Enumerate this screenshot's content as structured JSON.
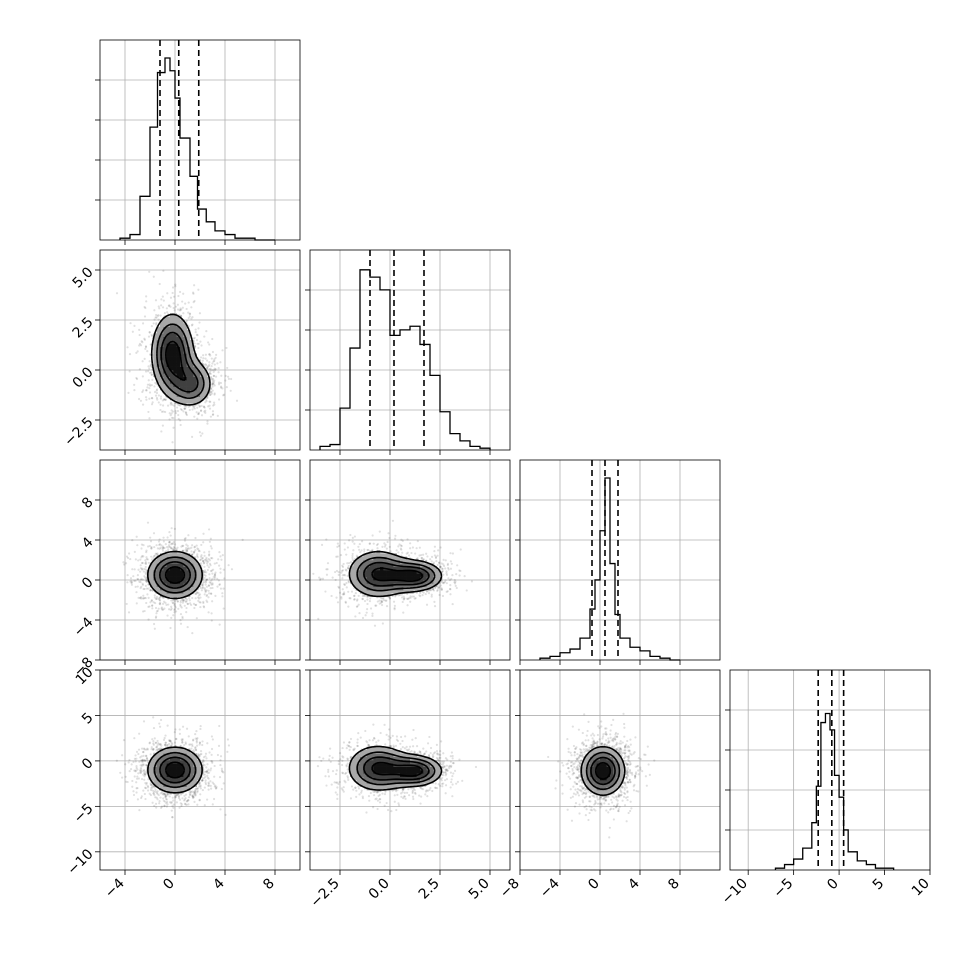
{
  "chart_data": {
    "type": "corner",
    "title": "",
    "grid": true,
    "parameters": [
      {
        "range": [
          -6,
          10
        ],
        "ticks": [
          -4,
          0,
          4,
          8
        ],
        "tick_labels": [
          "−4",
          "0",
          "4",
          "8"
        ],
        "quantiles": [
          -1.2,
          0.3,
          1.9
        ],
        "hist": {
          "edges": [
            -4.4,
            -3.6,
            -2.8,
            -2.0,
            -1.4,
            -0.8,
            -0.4,
            0.0,
            0.4,
            0.8,
            1.2,
            1.8,
            2.5,
            3.2,
            4.0,
            4.8,
            5.6,
            6.4,
            7.2,
            8.0
          ],
          "heights": [
            0.01,
            0.03,
            0.24,
            0.62,
            0.92,
            1.0,
            0.93,
            0.78,
            0.56,
            0.56,
            0.35,
            0.17,
            0.1,
            0.05,
            0.03,
            0.01,
            0.01,
            0.0,
            0.0
          ]
        }
      },
      {
        "range": [
          -4,
          6
        ],
        "ticks": [
          -2.5,
          0.0,
          2.5,
          5.0
        ],
        "tick_labels": [
          "−2.5",
          "0.0",
          "2.5",
          "5.0"
        ],
        "quantiles": [
          -1.0,
          0.2,
          1.7
        ],
        "hist": {
          "edges": [
            -3.5,
            -3.0,
            -2.5,
            -2.0,
            -1.5,
            -1.0,
            -0.5,
            0.0,
            0.5,
            1.0,
            1.5,
            2.0,
            2.5,
            3.0,
            3.5,
            4.0,
            4.5,
            5.0
          ],
          "heights": [
            0.02,
            0.03,
            0.23,
            0.56,
            0.99,
            0.95,
            0.88,
            0.63,
            0.66,
            0.68,
            0.58,
            0.41,
            0.21,
            0.09,
            0.05,
            0.02,
            0.01
          ]
        }
      },
      {
        "range": [
          -8,
          12
        ],
        "ticks": [
          -8,
          -4,
          0,
          4,
          8
        ],
        "tick_labels": [
          "−8",
          "−4",
          "0",
          "4",
          "8"
        ],
        "quantiles": [
          -0.8,
          0.5,
          1.8
        ],
        "hist": {
          "edges": [
            -6,
            -5,
            -4,
            -3,
            -2,
            -1,
            -0.5,
            0,
            0.5,
            1,
            1.5,
            2,
            3,
            4,
            5,
            6,
            7,
            8
          ],
          "heights": [
            0.01,
            0.02,
            0.04,
            0.06,
            0.12,
            0.28,
            0.44,
            0.71,
            1.0,
            0.53,
            0.25,
            0.12,
            0.07,
            0.05,
            0.02,
            0.01,
            0.0
          ]
        }
      },
      {
        "range": [
          -12,
          10
        ],
        "ticks": [
          -10,
          -5,
          0,
          5,
          10
        ],
        "tick_labels": [
          "−10",
          "−5",
          "0",
          "5",
          "10"
        ],
        "quantiles": [
          -2.3,
          -0.8,
          0.5
        ],
        "hist": {
          "edges": [
            -7,
            -6,
            -5,
            -4,
            -3,
            -2.5,
            -2,
            -1.5,
            -1,
            -0.5,
            0,
            0.5,
            1,
            2,
            3,
            4,
            5,
            6
          ],
          "heights": [
            0.01,
            0.03,
            0.06,
            0.12,
            0.26,
            0.46,
            0.81,
            0.86,
            0.77,
            0.52,
            0.4,
            0.22,
            0.1,
            0.05,
            0.03,
            0.01,
            0.01
          ]
        }
      }
    ],
    "pairs": [
      {
        "x_param": 0,
        "y_param": 1,
        "blobs": [
          {
            "cx": -0.2,
            "cy": 0.8,
            "sx": 1.0,
            "sy": 1.2,
            "w": 0.6
          },
          {
            "cx": 1.4,
            "cy": -0.7,
            "sx": 1.0,
            "sy": 0.7,
            "w": 0.4
          }
        ]
      },
      {
        "x_param": 0,
        "y_param": 2,
        "blobs": [
          {
            "cx": 0.0,
            "cy": 0.5,
            "sx": 1.3,
            "sy": 1.4,
            "w": 1.0
          }
        ]
      },
      {
        "x_param": 1,
        "y_param": 2,
        "blobs": [
          {
            "cx": -0.6,
            "cy": 0.6,
            "sx": 0.9,
            "sy": 1.4,
            "w": 0.5
          },
          {
            "cx": 1.3,
            "cy": 0.4,
            "sx": 0.8,
            "sy": 0.9,
            "w": 0.5
          }
        ]
      },
      {
        "x_param": 0,
        "y_param": 3,
        "blobs": [
          {
            "cx": 0.0,
            "cy": -1.0,
            "sx": 1.3,
            "sy": 1.5,
            "w": 1.0
          }
        ]
      },
      {
        "x_param": 1,
        "y_param": 3,
        "blobs": [
          {
            "cx": -0.6,
            "cy": -0.8,
            "sx": 0.9,
            "sy": 1.5,
            "w": 0.5
          },
          {
            "cx": 1.3,
            "cy": -1.1,
            "sx": 0.8,
            "sy": 1.0,
            "w": 0.5
          }
        ]
      },
      {
        "x_param": 2,
        "y_param": 3,
        "blobs": [
          {
            "cx": 0.3,
            "cy": -1.1,
            "sx": 1.3,
            "sy": 1.6,
            "w": 1.0
          }
        ]
      }
    ],
    "contour_levels": [
      0.25,
      0.45,
      0.65,
      0.85
    ]
  }
}
